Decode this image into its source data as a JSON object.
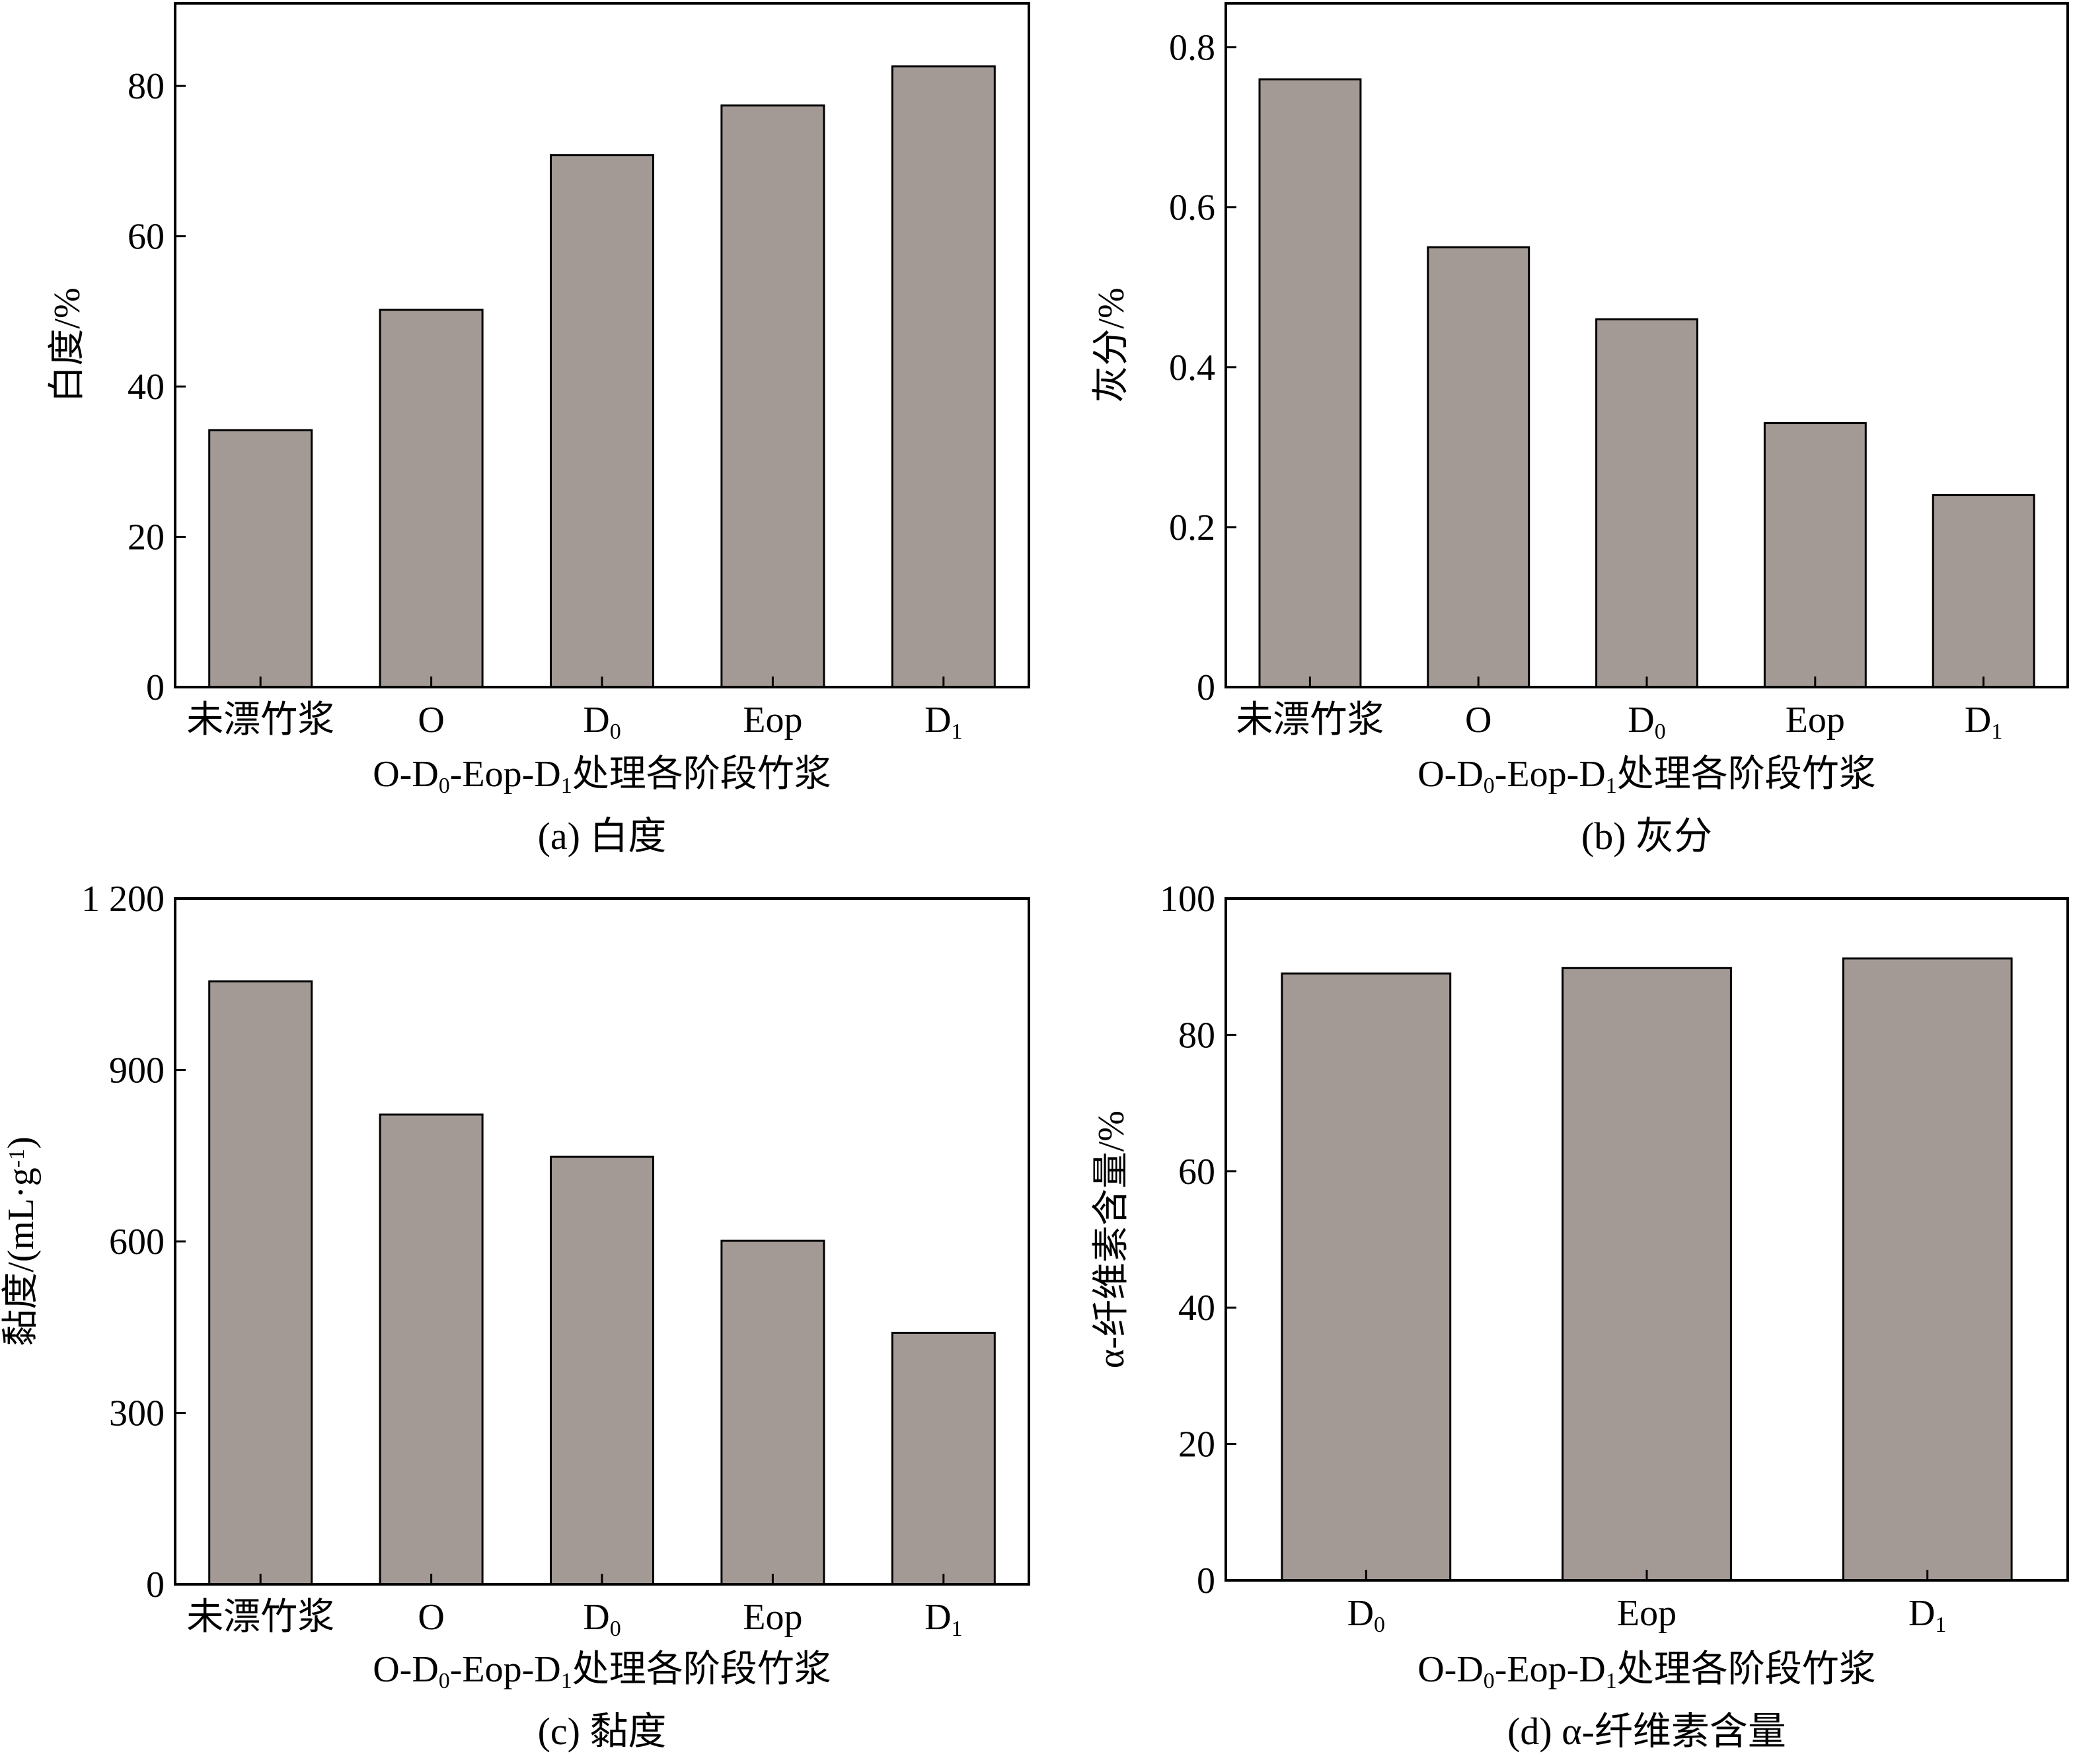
{
  "chart_data": [
    {
      "id": "a",
      "type": "bar",
      "categories": [
        "未漂竹浆",
        "O",
        "D0",
        "Eop",
        "D1"
      ],
      "values": [
        34.2,
        50.2,
        70.8,
        77.4,
        82.6
      ],
      "ylabel": "白度/%",
      "xlabel": "O-D0-Eop-D1处理各阶段竹浆",
      "caption": "(a) 白度",
      "ylim": [
        0,
        91
      ],
      "yticks": [
        0,
        20,
        40,
        60,
        80
      ],
      "ytick_labels": [
        "0",
        "20",
        "40",
        "60",
        "80"
      ],
      "bar_color": "#a39a96",
      "grid": false
    },
    {
      "id": "b",
      "type": "bar",
      "categories": [
        "未漂竹浆",
        "O",
        "D0",
        "Eop",
        "D1"
      ],
      "values": [
        0.76,
        0.55,
        0.46,
        0.33,
        0.24
      ],
      "ylabel": "灰分/%",
      "xlabel": "O-D0-Eop-D1处理各阶段竹浆",
      "caption": "(b) 灰分",
      "ylim": [
        0,
        0.855
      ],
      "yticks": [
        0,
        0.2,
        0.4,
        0.6,
        0.8
      ],
      "ytick_labels": [
        "0",
        "0.2",
        "0.4",
        "0.6",
        "0.8"
      ],
      "bar_color": "#a39a96",
      "grid": false
    },
    {
      "id": "c",
      "type": "bar",
      "categories": [
        "未漂竹浆",
        "O",
        "D0",
        "Eop",
        "D1"
      ],
      "values": [
        1055,
        822,
        748,
        601,
        440
      ],
      "ylabel": "黏度/(mL·g-1)",
      "xlabel": "O-D0-Eop-D1处理各阶段竹浆",
      "caption": "(c) 黏度",
      "ylim": [
        0,
        1200
      ],
      "yticks": [
        0,
        300,
        600,
        900,
        1200
      ],
      "ytick_labels": [
        "0",
        "300",
        "600",
        "900",
        "1 200"
      ],
      "bar_color": "#a39a96",
      "grid": false
    },
    {
      "id": "d",
      "type": "bar",
      "categories": [
        "D0",
        "Eop",
        "D1"
      ],
      "values": [
        89.0,
        89.8,
        91.2
      ],
      "ylabel": "α-纤维素含量/%",
      "xlabel": "O-D0-Eop-D1处理各阶段竹浆",
      "caption": "(d) α-纤维素含量",
      "ylim": [
        0,
        100
      ],
      "yticks": [
        0,
        20,
        40,
        60,
        80,
        100
      ],
      "ytick_labels": [
        "0",
        "20",
        "40",
        "60",
        "80",
        "100"
      ],
      "bar_color": "#a39a96",
      "grid": false
    }
  ]
}
